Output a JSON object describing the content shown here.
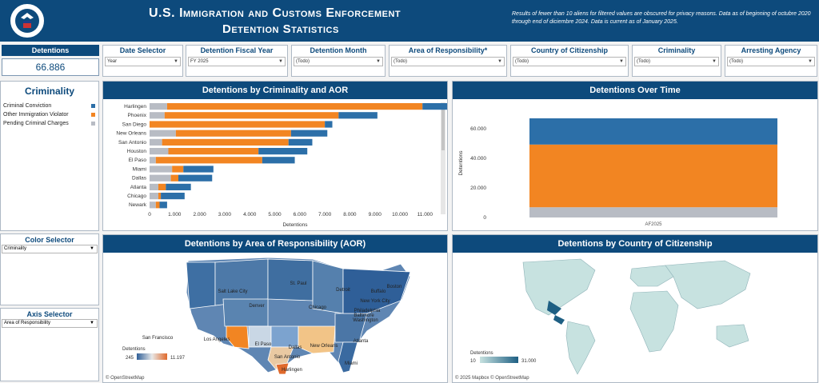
{
  "header": {
    "title_line1": "U.S. Immigration and Customs Enforcement",
    "title_line2": "Detention Statistics",
    "note": "Results of fewer than 10 aliens for filtered values are obscured for privacy reasons. Data as of beginning of octubre 2020 through end of diciembre 2024. Data is current as of January 2025.",
    "seal_text": "U.S. DEPARTMENT OF HOMELAND SECURITY"
  },
  "kpi": {
    "label": "Detentions",
    "value": "66.886"
  },
  "filters": [
    {
      "label": "Date Selector",
      "value": "Year"
    },
    {
      "label": "Detention Fiscal Year",
      "value": "FY 2025"
    },
    {
      "label": "Detention Month",
      "value": "(Todo)"
    },
    {
      "label": "Area of Responsibility*",
      "value": "(Todo)"
    },
    {
      "label": "Country of Citizenship",
      "value": "(Todo)"
    },
    {
      "label": "Criminality",
      "value": "(Todo)"
    },
    {
      "label": "Arresting Agency",
      "value": "(Todo)"
    }
  ],
  "criminality_legend": {
    "title": "Criminality",
    "items": [
      {
        "label": "Criminal Conviction",
        "color": "#2c6fa8"
      },
      {
        "label": "Other Immigration Violator",
        "color": "#f28522"
      },
      {
        "label": "Pending Criminal Charges",
        "color": "#b8bcc4"
      }
    ]
  },
  "color_selector": {
    "title": "Color Selector",
    "value": "Criminality"
  },
  "axis_selector": {
    "title": "Axis Selector",
    "value": "Area of Responsibility"
  },
  "colors": {
    "brand": "#0d4a7c",
    "conviction": "#2c6fa8",
    "other": "#f28522",
    "pending": "#b8bcc4"
  },
  "chart_data": [
    {
      "type": "bar",
      "title": "Detentions by Criminality and AOR",
      "orientation": "horizontal",
      "stacked": true,
      "categories": [
        "Harlingen",
        "Phoenix",
        "San Diego",
        "New Orleans",
        "San Antonio",
        "Houston",
        "El Paso",
        "Miami",
        "Dallas",
        "Atlanta",
        "Chicago",
        "Newark"
      ],
      "series": [
        {
          "name": "Pending Criminal Charges",
          "values": [
            700,
            600,
            0,
            1050,
            500,
            750,
            250,
            900,
            850,
            350,
            350,
            250
          ]
        },
        {
          "name": "Other Immigration Violator",
          "values": [
            10200,
            6950,
            7000,
            4600,
            5050,
            3600,
            4250,
            450,
            300,
            300,
            100,
            150
          ]
        },
        {
          "name": "Criminal Conviction",
          "values": [
            1000,
            1550,
            300,
            1450,
            950,
            1950,
            1300,
            1200,
            1350,
            1000,
            950,
            300
          ]
        }
      ],
      "xlabel": "Detentions",
      "ylabel": "",
      "xlim": [
        0,
        11500
      ],
      "xticks": [
        "0",
        "1.000",
        "2.000",
        "3.000",
        "4.000",
        "5.000",
        "6.000",
        "7.000",
        "8.000",
        "9.000",
        "10.000",
        "11.000"
      ],
      "grid": false
    },
    {
      "type": "bar",
      "title": "Detentions Over Time",
      "stacked": true,
      "categories": [
        "AF2025"
      ],
      "series": [
        {
          "name": "Pending Criminal Charges",
          "values": [
            6900
          ]
        },
        {
          "name": "Other Immigration Violator",
          "values": [
            42300
          ]
        },
        {
          "name": "Criminal Conviction",
          "values": [
            17686
          ]
        }
      ],
      "ylabel": "Detentions",
      "xlabel": "",
      "ylim": [
        0,
        66886
      ],
      "yticks": [
        "0",
        "20.000",
        "40.000",
        "60.000"
      ],
      "grid": false
    }
  ],
  "aor_map": {
    "title": "Detentions by Area of Responsibility (AOR)",
    "legend_title": "Detentions",
    "legend_min": "245",
    "legend_max": "11.197",
    "labels": [
      "Salt Lake City",
      "St. Paul",
      "Detroit",
      "Buffalo",
      "Boston",
      "New York City",
      "Philadelphia",
      "Baltimore",
      "Washington",
      "Denver",
      "Chicago",
      "San Francisco",
      "Los Angeles",
      "El Paso",
      "Dallas",
      "New Orleans",
      "Atlanta",
      "Phoenix",
      "San Antonio",
      "Houston",
      "Harlingen",
      "Miami",
      "San Diego"
    ],
    "attribution": "© OpenStreetMap"
  },
  "country_map": {
    "title": "Detentions by Country of Citizenship",
    "legend_title": "Detentions",
    "legend_min": "10",
    "legend_max": "31.000",
    "attribution": "© 2025 Mapbox  © OpenStreetMap"
  }
}
